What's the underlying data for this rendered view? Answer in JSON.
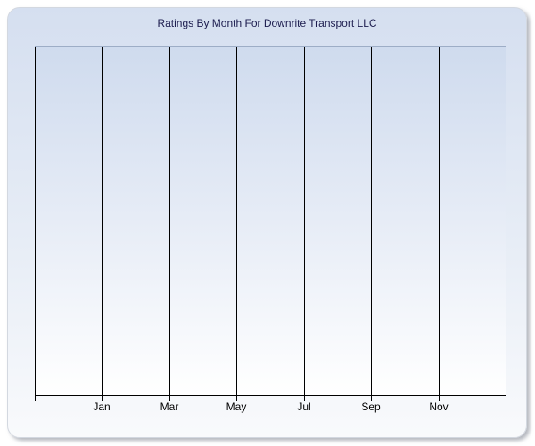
{
  "page": {
    "background": "#ffffff"
  },
  "panel": {
    "bg_top": "#d5dff0",
    "bg_mid": "#e7edf6",
    "bg_bottom": "#f9fafc",
    "border_color": "#d3d8e0"
  },
  "chart_data": {
    "type": "line",
    "title": "Ratings By Month For Downrite Transport LLC",
    "title_color": "#1c1c4e",
    "x_axis": {
      "tick_labels": [
        "Jan",
        "Mar",
        "May",
        "Jul",
        "Sep",
        "Nov"
      ],
      "gridline_count": 8,
      "tick_label_color": "#000000"
    },
    "y_axis": {
      "tick_labels": []
    },
    "series": [],
    "plot_style": {
      "gridline_color": "#000000",
      "axis_color": "#000000",
      "top_border_color": "#9dadc6",
      "bg_top": "#cfdbee",
      "bg_mid": "#e9eef7",
      "bg_bottom": "#ffffff"
    },
    "legend": null,
    "grid": "vertical-only"
  }
}
